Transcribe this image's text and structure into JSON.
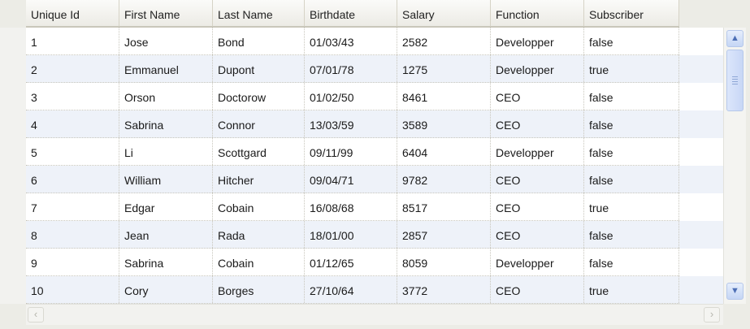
{
  "table": {
    "columns": [
      "Unique Id",
      "First Name",
      "Last Name",
      "Birthdate",
      "Salary",
      "Function",
      "Subscriber"
    ],
    "rows": [
      [
        "1",
        "Jose",
        "Bond",
        "01/03/43",
        "2582",
        "Developper",
        "false"
      ],
      [
        "2",
        "Emmanuel",
        "Dupont",
        "07/01/78",
        "1275",
        "Developper",
        "true"
      ],
      [
        "3",
        "Orson",
        "Doctorow",
        "01/02/50",
        "8461",
        "CEO",
        "false"
      ],
      [
        "4",
        "Sabrina",
        "Connor",
        "13/03/59",
        "3589",
        "CEO",
        "false"
      ],
      [
        "5",
        "Li",
        "Scottgard",
        "09/11/99",
        "6404",
        "Developper",
        "false"
      ],
      [
        "6",
        "William",
        "Hitcher",
        "09/04/71",
        "9782",
        "CEO",
        "false"
      ],
      [
        "7",
        "Edgar",
        "Cobain",
        "16/08/68",
        "8517",
        "CEO",
        "true"
      ],
      [
        "8",
        "Jean",
        "Rada",
        "18/01/00",
        "2857",
        "CEO",
        "false"
      ],
      [
        "9",
        "Sabrina",
        "Cobain",
        "01/12/65",
        "8059",
        "Developper",
        "false"
      ],
      [
        "10",
        "Cory",
        "Borges",
        "27/10/64",
        "3772",
        "CEO",
        "true"
      ]
    ]
  },
  "icons": {
    "scroll_up": "chevron-up-icon",
    "scroll_down": "chevron-down-icon",
    "scroll_left": "chevron-left-icon",
    "scroll_right": "chevron-right-icon"
  },
  "colors": {
    "alt_row": "#eef2f9",
    "scrollbar_accent": "#c5d6f5"
  }
}
